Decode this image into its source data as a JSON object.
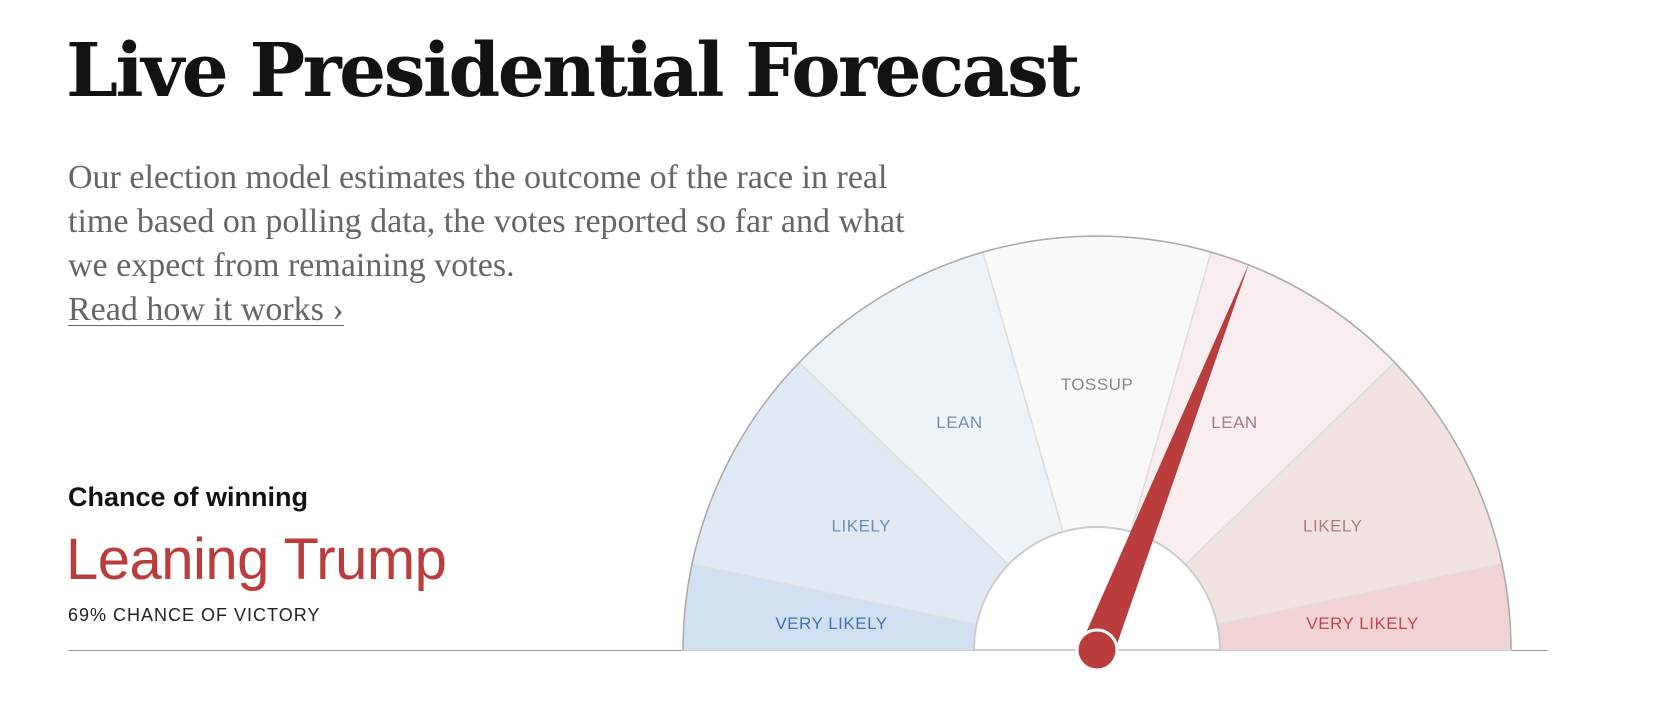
{
  "header": {
    "title": "Live Presidential Forecast",
    "description": "Our election model estimates the outcome of the race in real time based on polling data, the votes reported so far and what we expect from remaining votes.",
    "read_link": "Read how it works ›"
  },
  "summary": {
    "heading": "Chance of winning",
    "status": "Leaning Trump",
    "victory_text": "69% CHANCE OF VICTORY"
  },
  "colors": {
    "needle": "#b93d3d",
    "accent_red": "#b93d3d"
  },
  "chart_data": {
    "type": "gauge",
    "value_percent": 69,
    "leader": "Trump",
    "segments": [
      {
        "label": "VERY LIKELY",
        "side": "blue",
        "fill": "#d1e0f0",
        "text": "#3f73b6"
      },
      {
        "label": "LIKELY",
        "side": "blue",
        "fill": "#e1eaf4",
        "text": "#6a8fbb"
      },
      {
        "label": "LEAN",
        "side": "blue",
        "fill": "#eef3f8",
        "text": "#7a8ea3"
      },
      {
        "label": "TOSSUP",
        "side": "neutral",
        "fill": "#f9f9f9",
        "text": "#888888"
      },
      {
        "label": "LEAN",
        "side": "red",
        "fill": "#f9eeef",
        "text": "#9d8082"
      },
      {
        "label": "LIKELY",
        "side": "red",
        "fill": "#f3e2e2",
        "text": "#b27a7d"
      },
      {
        "label": "VERY LIKELY",
        "side": "red",
        "fill": "#f2d3d5",
        "text": "#c0444b"
      }
    ]
  }
}
